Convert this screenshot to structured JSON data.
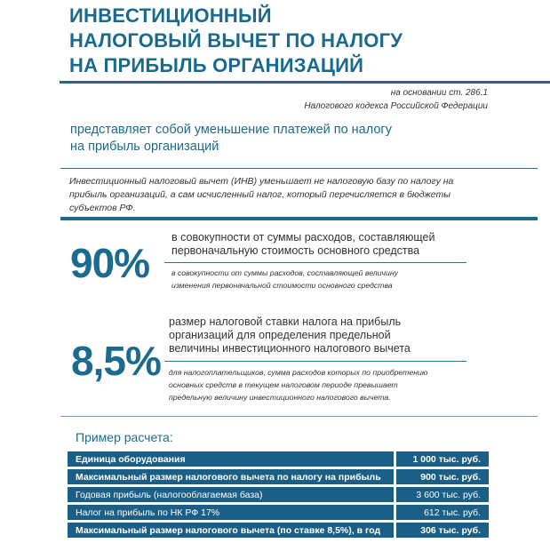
{
  "title": {
    "line1": "ИНВЕСТИЦИОННЫЙ",
    "line2": "НАЛОГОВЫЙ ВЫЧЕТ ПО НАЛОГУ",
    "line3": "НА ПРИБЫЛЬ ОРГАНИЗАЦИЙ"
  },
  "basis": {
    "line1": "на основании ст. 286.1",
    "line2": "Налогового кодекса Российской Федерации"
  },
  "definition": {
    "line1": "представляет собой уменьшение платежей по налогу",
    "line2": "на прибыль организаций"
  },
  "inv_note": "Инвестиционный налоговый вычет (ИНВ) уменьшает не налоговую базу по налогу на прибыль организаций, а сам исчисленный налог, который перечисляется в бюджеты субъектов РФ.",
  "stats": [
    {
      "value": "90%",
      "main_line1": "в совокупности от суммы расходов, составляющей",
      "main_line2": "первоначальную стоимость основного средства",
      "note_line1": "в совокупности от суммы расходов, составляющей величину",
      "note_line2": "изменения первоначальной стоимости основного средства"
    },
    {
      "value": "8,5%",
      "main_line1": "размер налоговой ставки налога на прибыль",
      "main_line2": "организаций для определения предельной",
      "main_line3": "величины инвестиционного налогового вычета",
      "note_line1": "для налогоплательщиков, сумма расходов которых по приобретению",
      "note_line2": "основных средств в текущем налоговом периоде превышает",
      "note_line3": "предельную величину инвестиционного налогового вычета."
    }
  ],
  "example": {
    "title": "Пример расчета:",
    "rows": [
      {
        "label": "Единица оборудования",
        "value": "1 000 тыс. руб."
      },
      {
        "label": "Максимальный размер налогового вычета по налогу на прибыль",
        "value": "900 тыс. руб."
      },
      {
        "label": "Годовая прибыль (налогооблагаемая база)",
        "value": "3 600 тыс. руб."
      },
      {
        "label": "Налог на прибыль по НК РФ 17%",
        "value": "612 тыс. руб."
      },
      {
        "label": "Максимальный размер налогового вычета (по ставке 8,5%), в год",
        "value": "306 тыс. руб."
      }
    ]
  },
  "colors": {
    "accent": "#1b6b8f",
    "table_bg": "#1b5e86",
    "text": "#333333"
  }
}
